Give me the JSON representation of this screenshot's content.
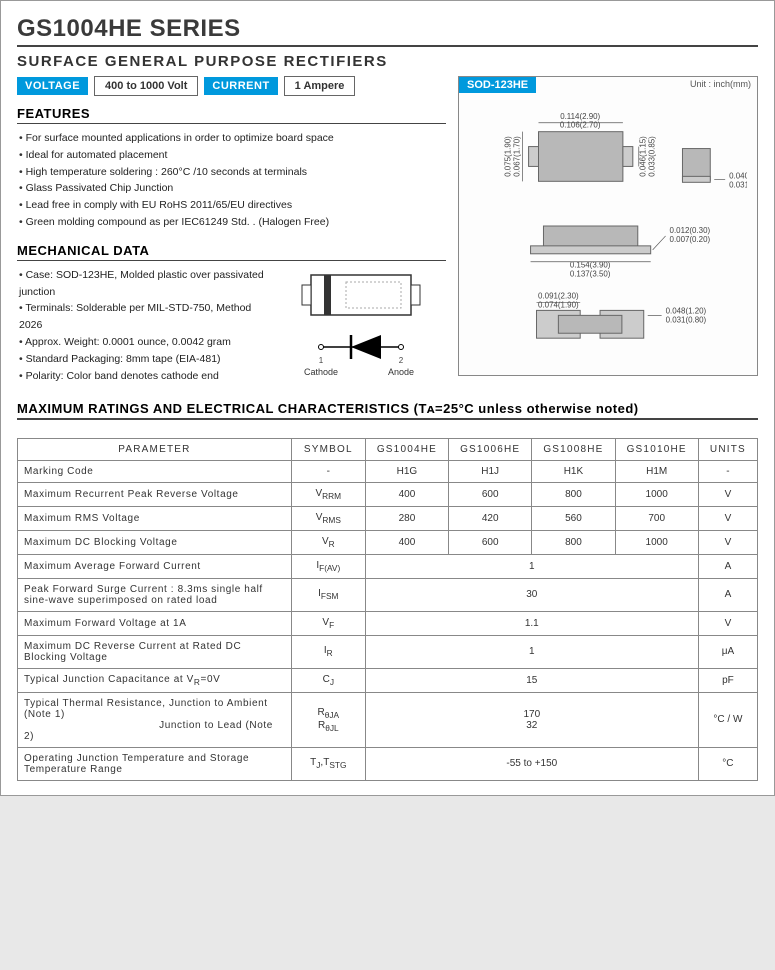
{
  "header": {
    "title": "GS1004HE  SERIES",
    "subtitle": "SURFACE  GENERAL PURPOSE RECTIFIERS",
    "voltage_label": "VOLTAGE",
    "voltage_value": "400 to 1000 Volt",
    "current_label": "CURRENT",
    "current_value": "1 Ampere"
  },
  "features": {
    "heading": "FEATURES",
    "items": [
      "For surface mounted applications in order to optimize board space",
      "Ideal for automated placement",
      "High temperature soldering : 260°C /10 seconds at terminals",
      "Glass Passivated Chip Junction",
      "Lead free in comply with EU RoHS 2011/65/EU directives",
      "Green molding compound as per IEC61249 Std. . (Halogen Free)"
    ]
  },
  "mechanical": {
    "heading": "MECHANICAL DATA",
    "items": [
      "Case: SOD-123HE, Molded plastic over passivated junction",
      "Terminals: Solderable per MIL-STD-750, Method 2026",
      "Approx. Weight: 0.0001 ounce, 0.0042 gram",
      "Standard Packaging: 8mm tape (EIA-481)",
      "Polarity: Color band denotes cathode end"
    ],
    "cathode": "Cathode",
    "anode": "Anode",
    "pin1": "1",
    "pin2": "2"
  },
  "package": {
    "name": "SOD-123HE",
    "unit_label": "Unit : inch(mm)",
    "dims": {
      "top_w1": "0.114(2.90)",
      "top_w2": "0.106(2.70)",
      "side_h1": "0.075(1.90)",
      "side_h2": "0.067(1.70)",
      "right_h1": "0.046(1.15)",
      "right_h2": "0.033(0.85)",
      "lead_t1": "0.040(1.00)",
      "lead_t2": "0.031(0.80)",
      "bot_w1": "0.154(3.90)",
      "bot_w2": "0.137(3.50)",
      "edge_t1": "0.012(0.30)",
      "edge_t2": "0.007(0.20)",
      "pad_w1": "0.091(2.30)",
      "pad_w2": "0.074(1.90)",
      "pad_h1": "0.048(1.20)",
      "pad_h2": "0.031(0.80)"
    }
  },
  "ratings": {
    "heading": "MAXIMUM RATINGS AND ELECTRICAL CHARACTERISTICS (Tᴀ=25°C unless otherwise noted)",
    "columns": [
      "PARAMETER",
      "SYMBOL",
      "GS1004HE",
      "GS1006HE",
      "GS1008HE",
      "GS1010HE",
      "UNITS"
    ],
    "rows": [
      {
        "param": "Marking Code",
        "sym": "-",
        "v": [
          "H1G",
          "H1J",
          "H1K",
          "H1M"
        ],
        "unit": "-"
      },
      {
        "param": "Maximum Recurrent Peak Reverse Voltage",
        "sym": "V<sub>RRM</sub>",
        "v": [
          "400",
          "600",
          "800",
          "1000"
        ],
        "unit": "V"
      },
      {
        "param": "Maximum RMS Voltage",
        "sym": "V<sub>RMS</sub>",
        "v": [
          "280",
          "420",
          "560",
          "700"
        ],
        "unit": "V"
      },
      {
        "param": "Maximum DC Blocking Voltage",
        "sym": "V<sub>R</sub>",
        "v": [
          "400",
          "600",
          "800",
          "1000"
        ],
        "unit": "V"
      },
      {
        "param": "Maximum Average Forward Current",
        "sym": "I<sub>F(AV)</sub>",
        "span": "1",
        "unit": "A"
      },
      {
        "param": "Peak Forward Surge Current : 8.3ms single half sine-wave superimposed on rated load",
        "sym": "I<sub>FSM</sub>",
        "span": "30",
        "unit": "A"
      },
      {
        "param": "Maximum Forward Voltage at 1A",
        "sym": "V<sub>F</sub>",
        "span": "1.1",
        "unit": "V"
      },
      {
        "param": "Maximum DC Reverse Current at Rated DC Blocking Voltage",
        "sym": "I<sub>R</sub>",
        "span": "1",
        "unit": "μA"
      },
      {
        "param": "Typical Junction Capacitance at  V<sub>R</sub>=0V",
        "sym": "C<sub>J</sub>",
        "span": "15",
        "unit": "pF"
      },
      {
        "param": "Typical Thermal Resistance, Junction to Ambient (Note 1)<br>&nbsp;&nbsp;&nbsp;&nbsp;&nbsp;&nbsp;&nbsp;&nbsp;&nbsp;&nbsp;&nbsp;&nbsp;&nbsp;&nbsp;&nbsp;&nbsp;&nbsp;&nbsp;&nbsp;&nbsp;&nbsp;&nbsp;&nbsp;&nbsp;&nbsp;&nbsp;&nbsp;&nbsp;&nbsp;&nbsp;&nbsp;&nbsp;&nbsp;&nbsp;&nbsp;&nbsp;&nbsp;&nbsp;&nbsp;&nbsp;Junction to Lead (Note 2)",
        "sym": "R<sub>θJA</sub><br>R<sub>θJL</sub>",
        "span": "170<br>32",
        "unit": "°C / W"
      },
      {
        "param": "Operating Junction Temperature and Storage Temperature Range",
        "sym": "T<sub>J</sub>,T<sub>STG</sub>",
        "span": "-55 to +150",
        "unit": "°C"
      }
    ]
  },
  "colors": {
    "accent": "#0099dd",
    "text": "#333333",
    "border": "#888888",
    "pkg_fill": "#b8b8b8"
  }
}
